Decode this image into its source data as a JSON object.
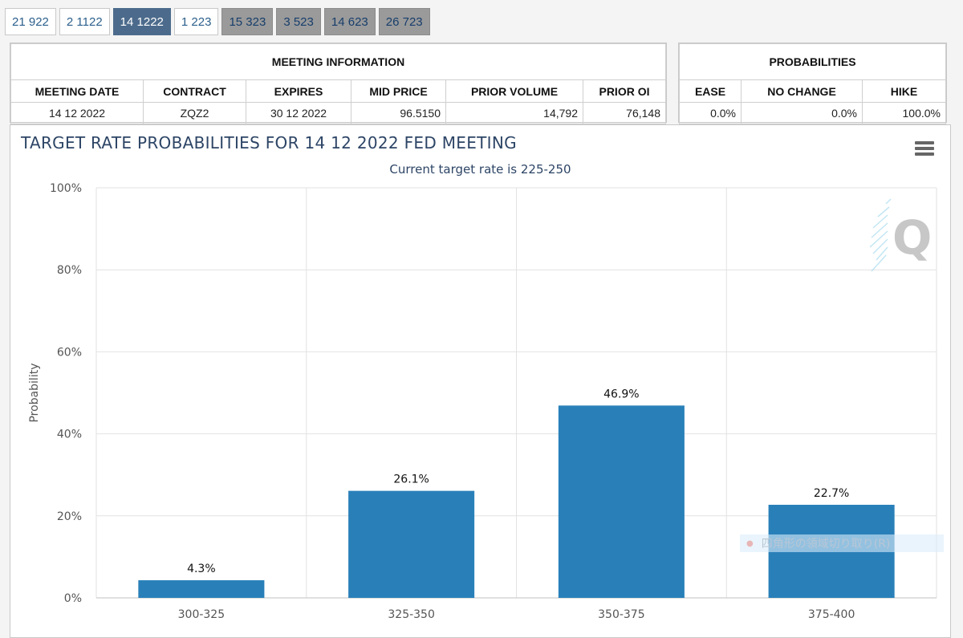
{
  "tabs": [
    {
      "label": "21 922",
      "style": "white"
    },
    {
      "label": "2 1122",
      "style": "white"
    },
    {
      "label": "14 1222",
      "style": "active"
    },
    {
      "label": "1 223",
      "style": "white"
    },
    {
      "label": "15 323",
      "style": "gray"
    },
    {
      "label": "3 523",
      "style": "gray"
    },
    {
      "label": "14 623",
      "style": "gray"
    },
    {
      "label": "26 723",
      "style": "gray"
    }
  ],
  "meeting_info": {
    "title": "MEETING INFORMATION",
    "headers": [
      "MEETING DATE",
      "CONTRACT",
      "EXPIRES",
      "MID PRICE",
      "PRIOR VOLUME",
      "PRIOR OI"
    ],
    "row": [
      "14 12 2022",
      "ZQZ2",
      "30 12 2022",
      "96.5150",
      "14,792",
      "76,148"
    ]
  },
  "probabilities": {
    "title": "PROBABILITIES",
    "headers": [
      "EASE",
      "NO CHANGE",
      "HIKE"
    ],
    "row": [
      "0.0%",
      "0.0%",
      "100.0%"
    ]
  },
  "chart": {
    "title": "TARGET RATE PROBABILITIES FOR 14 12 2022 FED MEETING",
    "subtitle": "Current target rate is 225-250",
    "menu_icon": "hamburger-menu-icon",
    "logo_text": "Q",
    "overlay_text": "四角形の領域切り取り(R)"
  },
  "chart_data": {
    "type": "bar",
    "title": "TARGET RATE PROBABILITIES FOR 14 12 2022 FED MEETING",
    "subtitle": "Current target rate is 225-250",
    "categories": [
      "300-325",
      "325-350",
      "350-375",
      "375-400"
    ],
    "values": [
      4.3,
      26.1,
      46.9,
      22.7
    ],
    "data_labels": [
      "4.3%",
      "26.1%",
      "46.9%",
      "22.7%"
    ],
    "xlabel": "",
    "ylabel": "Probability",
    "ylim": [
      0,
      100
    ],
    "yticks": [
      "0%",
      "20%",
      "40%",
      "60%",
      "80%",
      "100%"
    ],
    "bar_color": "#2980b9",
    "grid": true
  }
}
